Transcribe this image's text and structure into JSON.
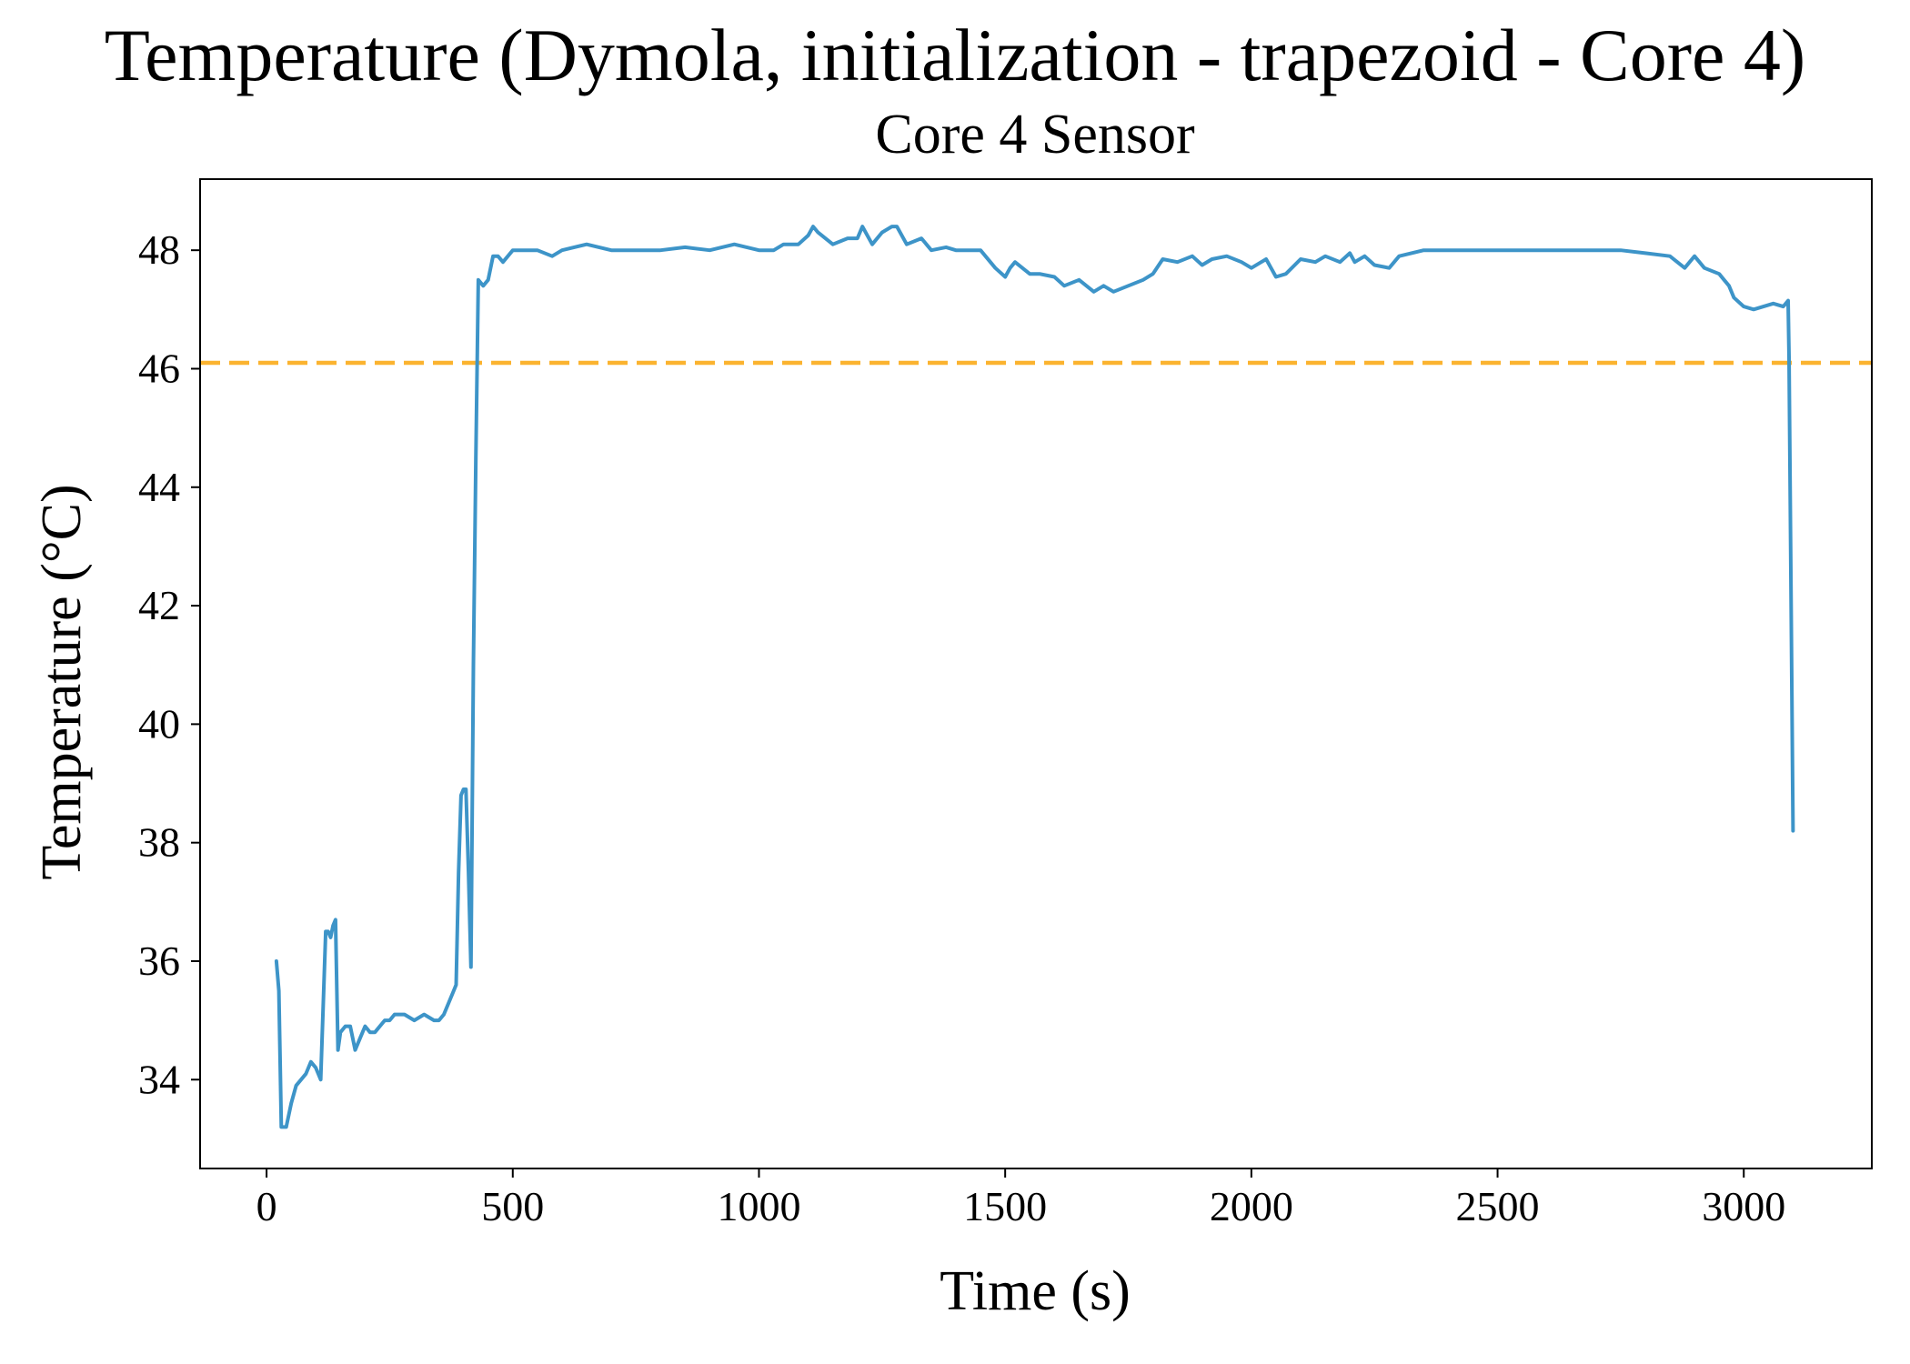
{
  "chart_data": {
    "type": "line",
    "title": "Temperature (Dymola, initialization - trapezoid - Core 4)",
    "subtitle": "Core 4 Sensor",
    "xlabel": "Time (s)",
    "ylabel": "Temperature (°C)",
    "xlim": [
      -135,
      3260
    ],
    "ylim": [
      32.5,
      49.2
    ],
    "xticks": [
      0,
      500,
      1000,
      1500,
      2000,
      2500,
      3000
    ],
    "xtick_labels": [
      "0",
      "500",
      "1000",
      "1500",
      "2000",
      "2500",
      "3000"
    ],
    "yticks": [
      34,
      36,
      38,
      40,
      42,
      44,
      46,
      48
    ],
    "ytick_labels": [
      "34",
      "36",
      "38",
      "40",
      "42",
      "44",
      "46",
      "48"
    ],
    "grid": false,
    "series": [
      {
        "color": "#3d94c8",
        "style": "solid",
        "x": [
          20,
          25,
          30,
          40,
          50,
          60,
          70,
          80,
          90,
          100,
          110,
          120,
          125,
          130,
          135,
          140,
          145,
          150,
          160,
          170,
          180,
          190,
          200,
          210,
          220,
          230,
          240,
          250,
          260,
          280,
          300,
          320,
          340,
          350,
          360,
          370,
          380,
          385,
          390,
          395,
          400,
          405,
          410,
          415,
          420,
          425,
          430,
          440,
          450,
          460,
          470,
          480,
          500,
          550,
          580,
          600,
          650,
          700,
          750,
          800,
          850,
          900,
          950,
          1000,
          1030,
          1050,
          1080,
          1100,
          1110,
          1120,
          1150,
          1180,
          1200,
          1210,
          1230,
          1250,
          1270,
          1280,
          1300,
          1330,
          1350,
          1380,
          1400,
          1450,
          1480,
          1500,
          1510,
          1520,
          1550,
          1570,
          1600,
          1620,
          1650,
          1680,
          1700,
          1720,
          1750,
          1780,
          1800,
          1820,
          1850,
          1880,
          1900,
          1920,
          1950,
          1980,
          2000,
          2020,
          2030,
          2050,
          2070,
          2100,
          2130,
          2150,
          2180,
          2200,
          2210,
          2230,
          2250,
          2280,
          2300,
          2350,
          2400,
          2450,
          2500,
          2550,
          2600,
          2650,
          2700,
          2750,
          2800,
          2850,
          2880,
          2900,
          2920,
          2950,
          2960,
          2970,
          2980,
          3000,
          3020,
          3040,
          3060,
          3080,
          3090,
          3092,
          3100
        ],
        "y": [
          36.0,
          35.5,
          33.2,
          33.2,
          33.6,
          33.9,
          34.0,
          34.1,
          34.3,
          34.2,
          34.0,
          36.5,
          36.5,
          36.4,
          36.6,
          36.7,
          34.5,
          34.8,
          34.9,
          34.9,
          34.5,
          34.7,
          34.9,
          34.8,
          34.8,
          34.9,
          35.0,
          35.0,
          35.1,
          35.1,
          35.0,
          35.1,
          35.0,
          35.0,
          35.1,
          35.3,
          35.5,
          35.6,
          37.5,
          38.8,
          38.9,
          38.9,
          37.5,
          35.9,
          41.0,
          44.5,
          47.5,
          47.4,
          47.5,
          47.9,
          47.9,
          47.8,
          48.0,
          48.0,
          47.9,
          48.0,
          48.1,
          48.0,
          48.0,
          48.0,
          48.05,
          48.0,
          48.1,
          48.0,
          48.0,
          48.1,
          48.1,
          48.25,
          48.4,
          48.3,
          48.1,
          48.2,
          48.2,
          48.4,
          48.1,
          48.3,
          48.4,
          48.4,
          48.1,
          48.2,
          48.0,
          48.05,
          48.0,
          48.0,
          47.7,
          47.55,
          47.7,
          47.8,
          47.6,
          47.6,
          47.55,
          47.4,
          47.5,
          47.3,
          47.4,
          47.3,
          47.4,
          47.5,
          47.6,
          47.85,
          47.8,
          47.9,
          47.75,
          47.85,
          47.9,
          47.8,
          47.7,
          47.8,
          47.85,
          47.55,
          47.6,
          47.85,
          47.8,
          47.9,
          47.8,
          47.95,
          47.8,
          47.9,
          47.75,
          47.7,
          47.9,
          48.0,
          48.0,
          48.0,
          48.0,
          48.0,
          48.0,
          48.0,
          48.0,
          48.0,
          47.95,
          47.9,
          47.7,
          47.9,
          47.7,
          47.6,
          47.5,
          47.4,
          47.2,
          47.05,
          47.0,
          47.05,
          47.1,
          47.05,
          47.15,
          46.2,
          38.2
        ]
      }
    ],
    "reference_lines": [
      {
        "orientation": "horizontal",
        "y": 46.1,
        "color": "#fbb32f",
        "style": "dashed"
      }
    ]
  }
}
